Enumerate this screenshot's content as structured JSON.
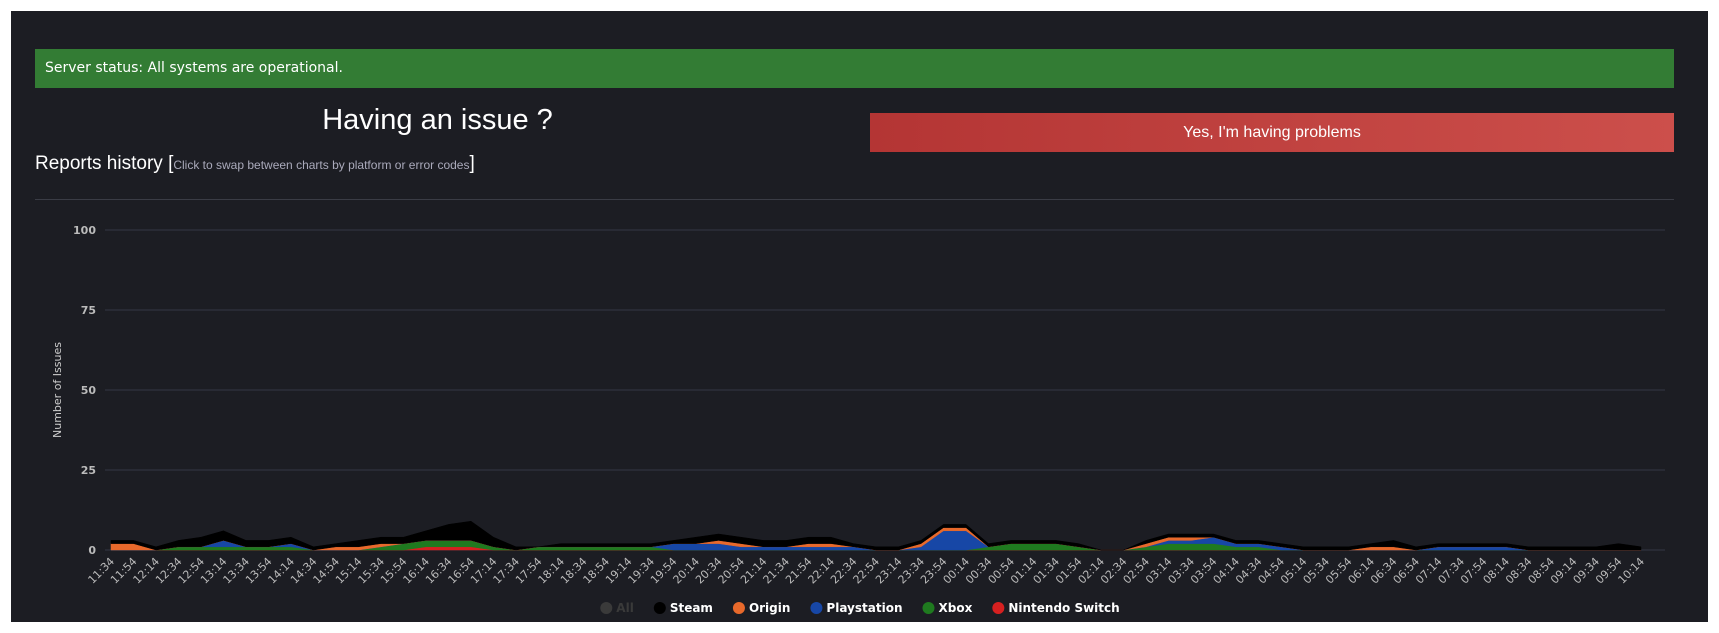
{
  "status": "Server status: All systems are operational.",
  "issue_heading": "Having an issue ?",
  "button": "Yes, I'm having problems",
  "reports_title": "Reports history",
  "bracket_open": "[",
  "reports_hint": "Click to swap between charts by platform or error codes",
  "bracket_close": "]",
  "chart_data": {
    "type": "stacked-area",
    "y_label": "Number of Issues",
    "ylim": [
      0,
      100
    ],
    "yticks": [
      0,
      25,
      50,
      75,
      100
    ],
    "grid": true,
    "categories": [
      "11:34",
      "11:54",
      "12:14",
      "12:34",
      "12:54",
      "13:14",
      "13:34",
      "13:54",
      "14:14",
      "14:34",
      "14:54",
      "15:14",
      "15:34",
      "15:54",
      "16:14",
      "16:34",
      "16:54",
      "17:14",
      "17:34",
      "17:54",
      "18:14",
      "18:34",
      "18:54",
      "19:14",
      "19:34",
      "19:54",
      "20:14",
      "20:34",
      "20:54",
      "21:14",
      "21:34",
      "21:54",
      "22:14",
      "22:34",
      "22:54",
      "23:14",
      "23:34",
      "23:54",
      "00:14",
      "00:34",
      "00:54",
      "01:14",
      "01:34",
      "01:54",
      "02:14",
      "02:34",
      "02:54",
      "03:14",
      "03:34",
      "03:54",
      "04:14",
      "04:34",
      "04:54",
      "05:14",
      "05:34",
      "05:54",
      "06:14",
      "06:34",
      "06:54",
      "07:14",
      "07:34",
      "07:54",
      "08:14",
      "08:34",
      "08:54",
      "09:14",
      "09:34",
      "09:54",
      "10:14"
    ],
    "inactive_legend": {
      "name": "All",
      "color": "#3a3a3a"
    },
    "series": [
      {
        "name": "Steam",
        "color": "#000000",
        "values": [
          1,
          1,
          1,
          2,
          3,
          3,
          2,
          2,
          2,
          1,
          1,
          2,
          2,
          2,
          3,
          5,
          6,
          3,
          1,
          0,
          1,
          1,
          1,
          1,
          1,
          1,
          2,
          2,
          2,
          2,
          2,
          2,
          2,
          1,
          1,
          1,
          1,
          1,
          1,
          1,
          1,
          1,
          1,
          1,
          0,
          0,
          1,
          1,
          1,
          1,
          1,
          1,
          1,
          1,
          1,
          1,
          1,
          2,
          1,
          1,
          1,
          1,
          1,
          1,
          1,
          1,
          1,
          2,
          1
        ]
      },
      {
        "name": "Origin",
        "color": "#e8692b",
        "values": [
          2,
          2,
          0,
          0,
          0,
          0,
          0,
          0,
          0,
          0,
          1,
          1,
          1,
          0,
          0,
          0,
          0,
          0,
          0,
          0,
          0,
          0,
          0,
          0,
          0,
          0,
          0,
          1,
          1,
          0,
          0,
          1,
          1,
          0,
          0,
          0,
          1,
          1,
          1,
          0,
          0,
          0,
          0,
          0,
          0,
          0,
          1,
          1,
          1,
          0,
          0,
          0,
          0,
          0,
          0,
          0,
          1,
          1,
          0,
          0,
          0,
          0,
          0,
          0,
          0,
          0,
          0,
          0,
          0
        ]
      },
      {
        "name": "Playstation",
        "color": "#1747a6",
        "values": [
          0,
          0,
          0,
          0,
          0,
          2,
          0,
          0,
          1,
          0,
          0,
          0,
          0,
          0,
          0,
          0,
          0,
          0,
          0,
          0,
          0,
          0,
          0,
          0,
          0,
          2,
          2,
          2,
          1,
          1,
          1,
          1,
          1,
          1,
          0,
          0,
          1,
          6,
          6,
          0,
          0,
          0,
          0,
          0,
          0,
          0,
          0,
          1,
          1,
          2,
          1,
          1,
          1,
          0,
          0,
          0,
          0,
          0,
          0,
          1,
          1,
          1,
          1,
          0,
          0,
          0,
          0,
          0,
          0
        ]
      },
      {
        "name": "Xbox",
        "color": "#1f7a1f",
        "values": [
          0,
          0,
          0,
          1,
          1,
          1,
          1,
          1,
          1,
          0,
          0,
          0,
          1,
          2,
          2,
          2,
          2,
          1,
          0,
          1,
          1,
          1,
          1,
          1,
          1,
          0,
          0,
          0,
          0,
          0,
          0,
          0,
          0,
          0,
          0,
          0,
          0,
          0,
          0,
          1,
          2,
          2,
          2,
          1,
          0,
          0,
          1,
          2,
          2,
          2,
          1,
          1,
          0,
          0,
          0,
          0,
          0,
          0,
          0,
          0,
          0,
          0,
          0,
          0,
          0,
          0,
          0,
          0,
          0
        ]
      },
      {
        "name": "Nintendo Switch",
        "color": "#d62020",
        "values": [
          0,
          0,
          0,
          0,
          0,
          0,
          0,
          0,
          0,
          0,
          0,
          0,
          0,
          0,
          1,
          1,
          1,
          0,
          0,
          0,
          0,
          0,
          0,
          0,
          0,
          0,
          0,
          0,
          0,
          0,
          0,
          0,
          0,
          0,
          0,
          0,
          0,
          0,
          0,
          0,
          0,
          0,
          0,
          0,
          0,
          0,
          0,
          0,
          0,
          0,
          0,
          0,
          0,
          0,
          0,
          0,
          0,
          0,
          0,
          0,
          0,
          0,
          0,
          0,
          0,
          0,
          0,
          0,
          0
        ]
      }
    ]
  }
}
